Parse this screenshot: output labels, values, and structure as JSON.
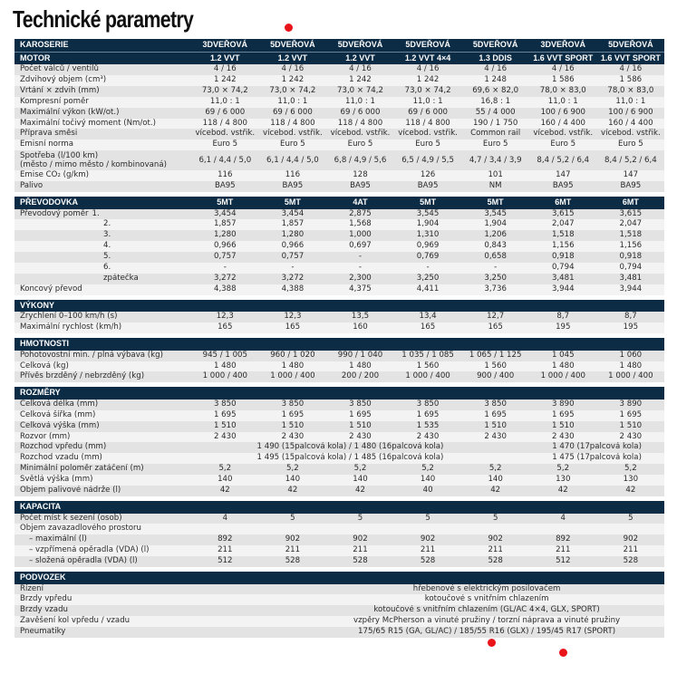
{
  "title": "Technické parametry",
  "header_rows": [
    {
      "label": "KAROSERIE",
      "values": [
        "3DVEŘOVÁ",
        "5DVEŘOVÁ",
        "5DVEŘOVÁ",
        "5DVEŘOVÁ",
        "5DVEŘOVÁ",
        "3DVEŘOVÁ",
        "5DVEŘOVÁ"
      ]
    },
    {
      "label": "MOTOR",
      "values": [
        "1.2 VVT",
        "1.2 VVT",
        "1.2 VVT",
        "1.2 VVT 4×4",
        "1.3 DDIS",
        "1.6 VVT SPORT",
        "1.6 VVT SPORT"
      ]
    }
  ],
  "motor_rows": [
    {
      "label": "Počet válců / ventilů",
      "values": [
        "4 / 16",
        "4 / 16",
        "4 / 16",
        "4 / 16",
        "4 / 16",
        "4 / 16",
        "4 / 16"
      ]
    },
    {
      "label": "Zdvihový objem (cm³)",
      "values": [
        "1 242",
        "1 242",
        "1 242",
        "1 242",
        "1 248",
        "1 586",
        "1 586"
      ]
    },
    {
      "label": "Vrtání × zdvih (mm)",
      "values": [
        "73,0 × 74,2",
        "73,0 × 74,2",
        "73,0 × 74,2",
        "73,0 × 74,2",
        "69,6 × 82,0",
        "78,0 × 83,0",
        "78,0 × 83,0"
      ]
    },
    {
      "label": "Kompresní poměr",
      "values": [
        "11,0 : 1",
        "11,0 : 1",
        "11,0 : 1",
        "11,0 : 1",
        "16,8 : 1",
        "11,0 : 1",
        "11,0 : 1"
      ]
    },
    {
      "label": "Maximální výkon (kW/ot.)",
      "values": [
        "69 / 6 000",
        "69 / 6 000",
        "69 / 6 000",
        "69 / 6 000",
        "55 / 4 000",
        "100 / 6 900",
        "100 / 6 900"
      ]
    },
    {
      "label": "Maximální točivý moment (Nm/ot.)",
      "values": [
        "118 / 4 800",
        "118 / 4 800",
        "118 / 4 800",
        "118 / 4 800",
        "190 / 1 750",
        "160 / 4 400",
        "160 / 4 400"
      ]
    },
    {
      "label": "Příprava směsi",
      "values": [
        "vícebod. vstřik.",
        "vícebod. vstřik.",
        "vícebod. vstřik.",
        "vícebod. vstřik.",
        "Common rail",
        "vícebod. vstřik.",
        "vícebod. vstřik."
      ]
    },
    {
      "label": "Emisní norma",
      "values": [
        "Euro 5",
        "Euro 5",
        "Euro 5",
        "Euro 5",
        "Euro 5",
        "Euro 5",
        "Euro 5"
      ]
    },
    {
      "label": "Spotřeba (l/100 km)",
      "label2": "(město / mimo město / kombinovaná)",
      "values": [
        "6,1 / 4,4 / 5,0",
        "6,1 / 4,4 / 5,0",
        "6,8 / 4,9 / 5,6",
        "6,5 / 4,9 / 5,5",
        "4,7 / 3,4 / 3,9",
        "8,4 / 5,2 / 6,4",
        "8,4 / 5,2 / 6,4"
      ]
    },
    {
      "label": "Emise CO₂ (g/km)",
      "values": [
        "116",
        "116",
        "128",
        "126",
        "101",
        "147",
        "147"
      ]
    },
    {
      "label": "Palivo",
      "values": [
        "BA95",
        "BA95",
        "BA95",
        "BA95",
        "NM",
        "BA95",
        "BA95"
      ]
    }
  ],
  "prevodovka": {
    "header": "PŘEVODOVKA",
    "types": [
      "5MT",
      "5MT",
      "4AT",
      "5MT",
      "5MT",
      "6MT",
      "6MT"
    ],
    "ratio_label": "Převodový poměr",
    "rows": [
      {
        "gear": "1.",
        "values": [
          "3,454",
          "3,454",
          "2,875",
          "3,545",
          "3,545",
          "3,615",
          "3,615"
        ]
      },
      {
        "gear": "2.",
        "values": [
          "1,857",
          "1,857",
          "1,568",
          "1,904",
          "1,904",
          "2,047",
          "2,047"
        ]
      },
      {
        "gear": "3.",
        "values": [
          "1,280",
          "1,280",
          "1,000",
          "1,310",
          "1,206",
          "1,518",
          "1,518"
        ]
      },
      {
        "gear": "4.",
        "values": [
          "0,966",
          "0,966",
          "0,697",
          "0,969",
          "0,843",
          "1,156",
          "1,156"
        ]
      },
      {
        "gear": "5.",
        "values": [
          "0,757",
          "0,757",
          "-",
          "0,769",
          "0,658",
          "0,918",
          "0,918"
        ]
      },
      {
        "gear": "6.",
        "values": [
          "-",
          "-",
          "-",
          "-",
          "-",
          "0,794",
          "0,794"
        ]
      },
      {
        "gear": "zpátečka",
        "values": [
          "3,272",
          "3,272",
          "2,300",
          "3,250",
          "3,250",
          "3,481",
          "3,481"
        ]
      }
    ],
    "final": {
      "label": "Koncový převod",
      "values": [
        "4,388",
        "4,388",
        "4,375",
        "4,411",
        "3,736",
        "3,944",
        "3,944"
      ]
    }
  },
  "vykony": {
    "header": "VÝKONY",
    "rows": [
      {
        "label": "Zrychlení 0–100 km/h (s)",
        "values": [
          "12,3",
          "12,3",
          "13,5",
          "13,4",
          "12,7",
          "8,7",
          "8,7"
        ]
      },
      {
        "label": "Maximální rychlost (km/h)",
        "values": [
          "165",
          "165",
          "160",
          "165",
          "165",
          "195",
          "195"
        ]
      }
    ]
  },
  "hmotnosti": {
    "header": "HMOTNOSTI",
    "rows": [
      {
        "label": "Pohotovostní min. / plná výbava (kg)",
        "values": [
          "945 / 1 005",
          "960 / 1 020",
          "990 / 1 040",
          "1 035 / 1 085",
          "1 065 / 1 125",
          "1 045",
          "1 060"
        ]
      },
      {
        "label": "Celková (kg)",
        "values": [
          "1 480",
          "1 480",
          "1 480",
          "1 560",
          "1 560",
          "1 480",
          "1 480"
        ]
      },
      {
        "label": "Přívěs brzděný / nebrzděný (kg)",
        "values": [
          "1 000 / 400",
          "1 000 / 400",
          "200 / 200",
          "1 000 / 400",
          "900 / 400",
          "1 000 / 400",
          "1 000 / 400"
        ]
      }
    ]
  },
  "rozmery": {
    "header": "ROZMĚRY",
    "rows_a": [
      {
        "label": "Celková délka (mm)",
        "values": [
          "3 850",
          "3 850",
          "3 850",
          "3 850",
          "3 850",
          "3 890",
          "3 890"
        ]
      },
      {
        "label": "Celková šířka (mm)",
        "values": [
          "1 695",
          "1 695",
          "1 695",
          "1 695",
          "1 695",
          "1 695",
          "1 695"
        ]
      },
      {
        "label": "Celková výška (mm)",
        "values": [
          "1 510",
          "1 510",
          "1 510",
          "1 535",
          "1 510",
          "1 510",
          "1 510"
        ]
      },
      {
        "label": "Rozvor (mm)",
        "values": [
          "2 430",
          "2 430",
          "2 430",
          "2 430",
          "2 430",
          "2 430",
          "2 430"
        ]
      }
    ],
    "rozchod_vpredu": {
      "label": "Rozchod vpředu (mm)",
      "span_a": "1 490 (15palcová kola) / 1 480 (16palcová kola)",
      "span_b": "1 470 (17palcová kola)"
    },
    "rozchod_vzadu": {
      "label": "Rozchod vzadu (mm)",
      "span_a": "1 495 (15palcová kola) / 1 485 (16palcová kola)",
      "span_b": "1 475 (17palcová kola)"
    },
    "rows_b": [
      {
        "label": "Minimální poloměr zatáčení (m)",
        "values": [
          "5,2",
          "5,2",
          "5,2",
          "5,2",
          "5,2",
          "5,2",
          "5,2"
        ]
      },
      {
        "label": "Světlá výška (mm)",
        "values": [
          "140",
          "140",
          "140",
          "140",
          "140",
          "130",
          "130"
        ]
      },
      {
        "label": "Objem palivové nádrže (l)",
        "values": [
          "42",
          "42",
          "42",
          "40",
          "42",
          "42",
          "42"
        ]
      }
    ]
  },
  "kapacita": {
    "header": "KAPACITA",
    "seats": {
      "label": "Počet míst k sezení (osob)",
      "values": [
        "4",
        "5",
        "5",
        "5",
        "5",
        "4",
        "5"
      ]
    },
    "luggage_label": "Objem zavazadlového prostoru",
    "rows": [
      {
        "label": "– maximální (l)",
        "values": [
          "892",
          "902",
          "902",
          "902",
          "902",
          "892",
          "902"
        ]
      },
      {
        "label": "– vzpřímená opěradla (VDA) (l)",
        "values": [
          "211",
          "211",
          "211",
          "211",
          "211",
          "211",
          "211"
        ]
      },
      {
        "label": "– složená opěradla (VDA) (l)",
        "values": [
          "512",
          "528",
          "528",
          "528",
          "528",
          "512",
          "528"
        ]
      }
    ]
  },
  "podvozek": {
    "header": "PODVOZEK",
    "rows": [
      {
        "label": "Řízení",
        "value": "hřebenové s elektrickým posilovačem"
      },
      {
        "label": "Brzdy vpředu",
        "value": "kotoučové s vnitřním chlazením"
      },
      {
        "label": "Brzdy vzadu",
        "value": "kotoučové s vnitřním chlazením (GL/AC 4×4, GLX, SPORT)"
      },
      {
        "label": "Zavěšení kol vpředu / vzadu",
        "value": "vzpěry McPherson a vinuté pružiny / torzní náprava a vinuté pružiny"
      },
      {
        "label": "Pneumatiky",
        "value": "175/65 R15 (GA, GL/AC) / 185/55 R16 (GLX) / 195/45 R17 (SPORT)"
      }
    ]
  },
  "annotation_color": "#e8141a",
  "header_color": "#0c2b45"
}
